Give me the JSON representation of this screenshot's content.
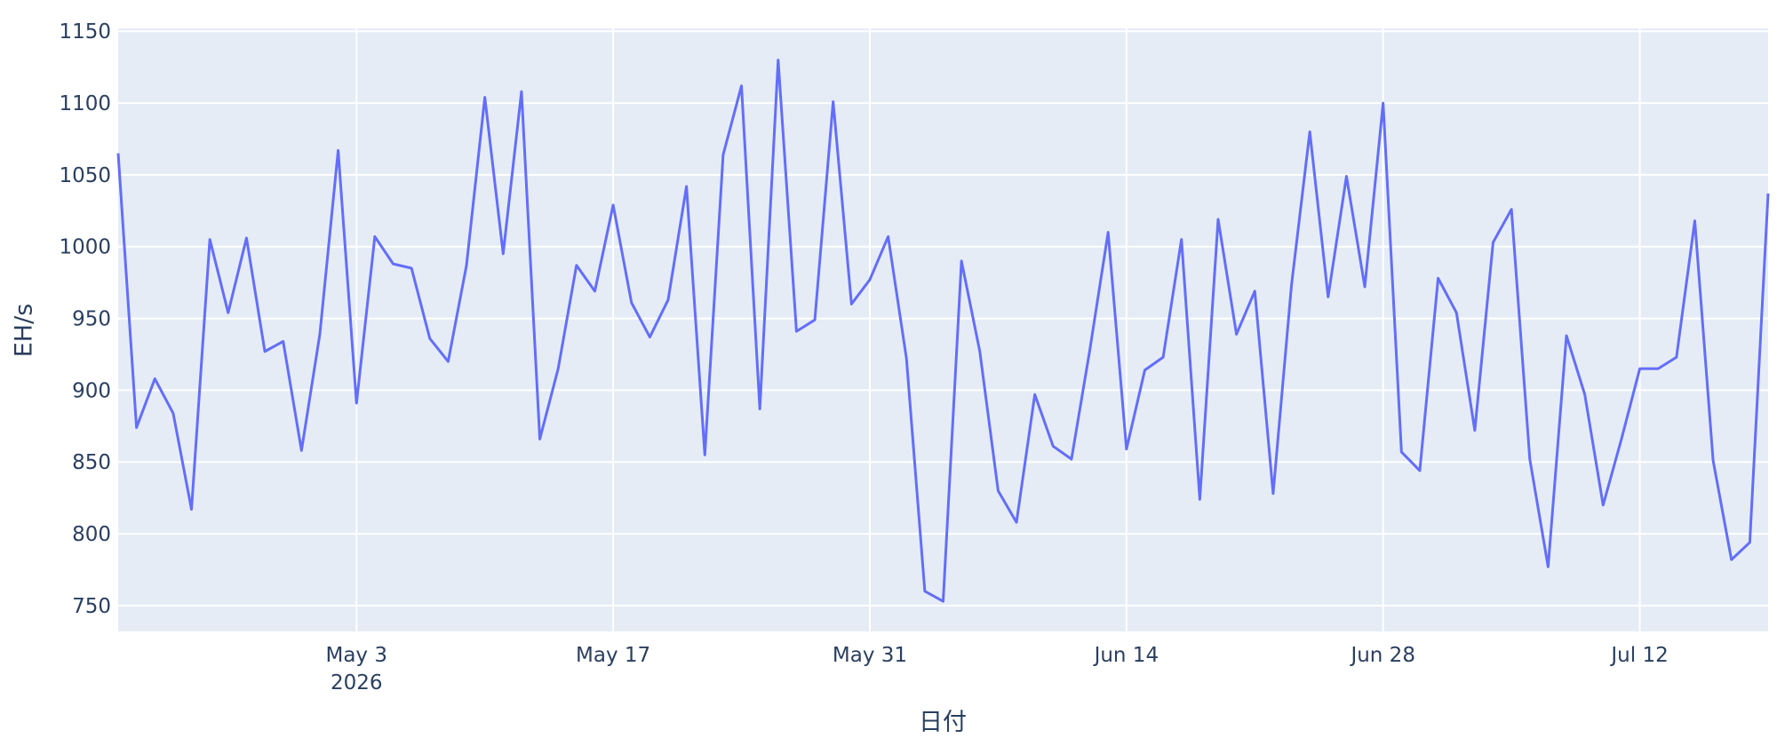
{
  "chart_data": {
    "type": "line",
    "x_label": "日付",
    "y_label": "EH/s",
    "x": [
      "2026-04-20",
      "2026-04-21",
      "2026-04-22",
      "2026-04-23",
      "2026-04-24",
      "2026-04-25",
      "2026-04-26",
      "2026-04-27",
      "2026-04-28",
      "2026-04-29",
      "2026-04-30",
      "2026-05-01",
      "2026-05-02",
      "2026-05-03",
      "2026-05-04",
      "2026-05-05",
      "2026-05-06",
      "2026-05-07",
      "2026-05-08",
      "2026-05-09",
      "2026-05-10",
      "2026-05-11",
      "2026-05-12",
      "2026-05-13",
      "2026-05-14",
      "2026-05-15",
      "2026-05-16",
      "2026-05-17",
      "2026-05-18",
      "2026-05-19",
      "2026-05-20",
      "2026-05-21",
      "2026-05-22",
      "2026-05-23",
      "2026-05-24",
      "2026-05-25",
      "2026-05-26",
      "2026-05-27",
      "2026-05-28",
      "2026-05-29",
      "2026-05-30",
      "2026-05-31",
      "2026-06-01",
      "2026-06-02",
      "2026-06-03",
      "2026-06-04",
      "2026-06-05",
      "2026-06-06",
      "2026-06-07",
      "2026-06-08",
      "2026-06-09",
      "2026-06-10",
      "2026-06-11",
      "2026-06-12",
      "2026-06-13",
      "2026-06-14",
      "2026-06-15",
      "2026-06-16",
      "2026-06-17",
      "2026-06-18",
      "2026-06-19",
      "2026-06-20",
      "2026-06-21",
      "2026-06-22",
      "2026-06-23",
      "2026-06-24",
      "2026-06-25",
      "2026-06-26",
      "2026-06-27",
      "2026-06-28",
      "2026-06-29",
      "2026-06-30",
      "2026-07-01",
      "2026-07-02",
      "2026-07-03",
      "2026-07-04",
      "2026-07-05",
      "2026-07-06",
      "2026-07-07",
      "2026-07-08",
      "2026-07-09",
      "2026-07-10",
      "2026-07-11",
      "2026-07-12",
      "2026-07-13",
      "2026-07-14",
      "2026-07-15",
      "2026-07-16",
      "2026-07-17",
      "2026-07-18",
      "2026-07-19"
    ],
    "series": [
      {
        "color": "#636efa",
        "values": [
          1065,
          874,
          908,
          884,
          817,
          1005,
          954,
          1006,
          927,
          934,
          858,
          939,
          1067,
          891,
          1007,
          988,
          985,
          936,
          920,
          987,
          1104,
          995,
          1108,
          866,
          915,
          987,
          969,
          1029,
          961,
          937,
          963,
          1042,
          855,
          1064,
          1112,
          887,
          1130,
          941,
          949,
          1101,
          960,
          977,
          1007,
          922,
          760,
          753,
          990,
          927,
          830,
          808,
          897,
          861,
          852,
          928,
          1010,
          859,
          914,
          923,
          1005,
          824,
          1019,
          939,
          969,
          828,
          973,
          1080,
          965,
          1049,
          972,
          1100,
          857,
          844,
          978,
          954,
          872,
          1003,
          1026,
          852,
          777,
          938,
          897,
          820,
          866,
          915,
          915,
          923,
          1018,
          851,
          782,
          794,
          1037
        ]
      }
    ],
    "xlim": [
      "2026-04-20",
      "2026-07-19"
    ],
    "xticks": [
      {
        "value": "2026-05-03",
        "label": [
          "May 3",
          "2026"
        ]
      },
      {
        "value": "2026-05-17",
        "label": [
          "May 17"
        ]
      },
      {
        "value": "2026-05-31",
        "label": [
          "May 31"
        ]
      },
      {
        "value": "2026-06-14",
        "label": [
          "Jun 14"
        ]
      },
      {
        "value": "2026-06-28",
        "label": [
          "Jun 28"
        ]
      },
      {
        "value": "2026-07-12",
        "label": [
          "Jul 12"
        ]
      }
    ],
    "ylim": [
      732,
      1152
    ],
    "yticks": [
      750,
      800,
      850,
      900,
      950,
      1000,
      1050,
      1100,
      1150
    ],
    "grid": true
  }
}
